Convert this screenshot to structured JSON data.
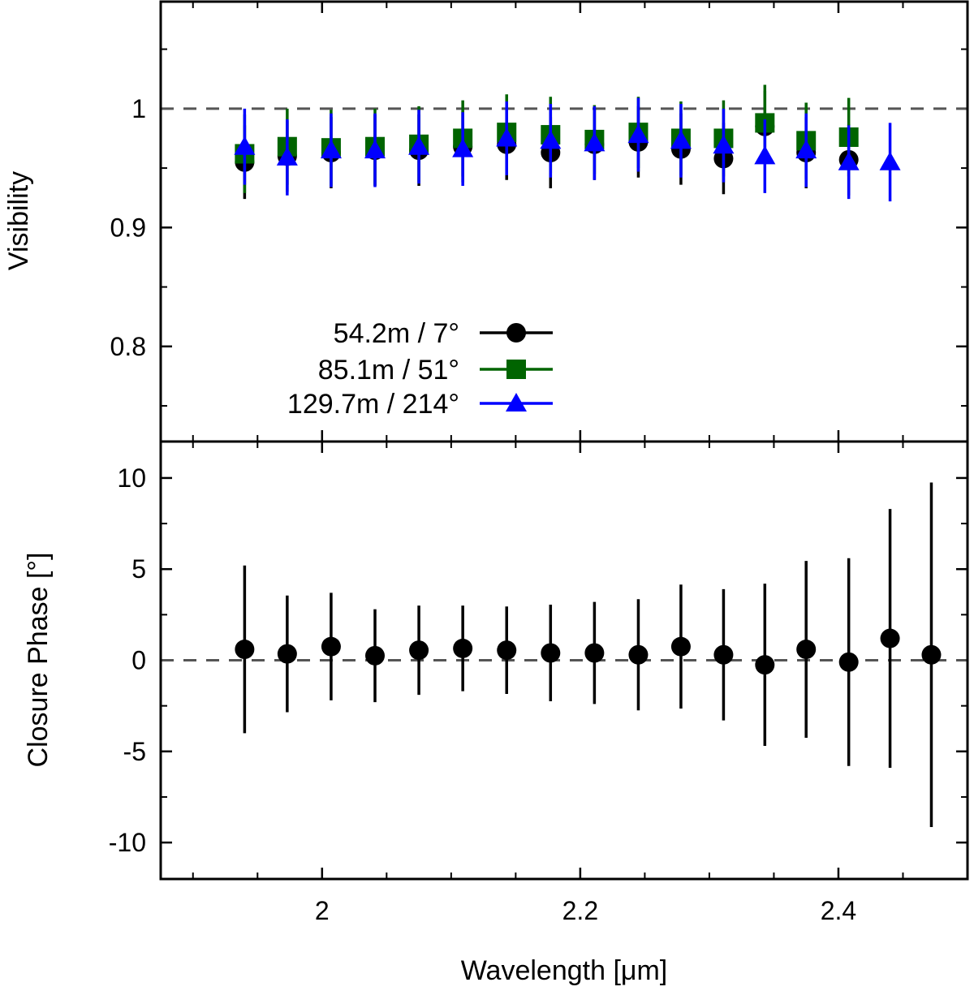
{
  "chart_data": [
    {
      "type": "scatter",
      "panel": "top",
      "ylabel": "Visibility",
      "xlim": [
        1.875,
        2.5
      ],
      "ylim": [
        0.72,
        1.09
      ],
      "yticks": [
        0.8,
        0.9,
        1.0
      ],
      "ytick_labels": [
        "0.8",
        "0.9",
        "1"
      ],
      "reference_line": 1.0,
      "legend": {
        "placement": "lower-left"
      },
      "series": [
        {
          "name": "54.2m / 7°",
          "color": "#000000",
          "marker": "circle",
          "x": [
            1.94,
            1.973,
            2.007,
            2.041,
            2.075,
            2.109,
            2.143,
            2.177,
            2.211,
            2.245,
            2.278,
            2.311,
            2.343,
            2.375,
            2.408
          ],
          "y": [
            0.955,
            0.96,
            0.963,
            0.965,
            0.965,
            0.968,
            0.97,
            0.963,
            0.97,
            0.972,
            0.966,
            0.958,
            0.985,
            0.963,
            0.957
          ],
          "err": [
            0.031,
            0.03,
            0.03,
            0.03,
            0.03,
            0.03,
            0.03,
            0.03,
            0.03,
            0.03,
            0.03,
            0.03,
            0.03,
            0.03,
            0.03
          ]
        },
        {
          "name": "85.1m / 51°",
          "color": "#006400",
          "marker": "square",
          "x": [
            1.94,
            1.973,
            2.007,
            2.041,
            2.075,
            2.109,
            2.143,
            2.177,
            2.211,
            2.245,
            2.278,
            2.311,
            2.343,
            2.375,
            2.408
          ],
          "y": [
            0.962,
            0.968,
            0.967,
            0.968,
            0.97,
            0.975,
            0.98,
            0.978,
            0.974,
            0.98,
            0.975,
            0.975,
            0.988,
            0.973,
            0.976
          ],
          "err": [
            0.033,
            0.032,
            0.032,
            0.032,
            0.032,
            0.032,
            0.032,
            0.032,
            0.029,
            0.03,
            0.031,
            0.032,
            0.032,
            0.032,
            0.033
          ]
        },
        {
          "name": "129.7m / 214°",
          "color": "#0000ff",
          "marker": "triangle",
          "x": [
            1.94,
            1.973,
            2.007,
            2.041,
            2.075,
            2.109,
            2.143,
            2.177,
            2.211,
            2.245,
            2.278,
            2.311,
            2.343,
            2.375,
            2.408,
            2.44
          ],
          "y": [
            0.968,
            0.959,
            0.965,
            0.965,
            0.968,
            0.966,
            0.975,
            0.973,
            0.971,
            0.978,
            0.973,
            0.969,
            0.96,
            0.965,
            0.955,
            0.955
          ],
          "err": [
            0.032,
            0.032,
            0.031,
            0.031,
            0.031,
            0.031,
            0.031,
            0.031,
            0.031,
            0.031,
            0.031,
            0.031,
            0.031,
            0.031,
            0.031,
            0.033
          ]
        }
      ]
    },
    {
      "type": "scatter",
      "panel": "bottom",
      "xlabel": "Wavelength [μm]",
      "ylabel": "Closure Phase [°]",
      "xlim": [
        1.875,
        2.5
      ],
      "ylim": [
        -12.0,
        12.0
      ],
      "xticks": [
        2.0,
        2.2,
        2.4
      ],
      "xtick_labels": [
        "2",
        "2.2",
        "2.4"
      ],
      "yticks": [
        -10,
        -5,
        0,
        5,
        10
      ],
      "ytick_labels": [
        "-10",
        "-5",
        "0",
        "5",
        "10"
      ],
      "reference_line": 0,
      "series": [
        {
          "color": "#000000",
          "marker": "circle",
          "x": [
            1.94,
            1.973,
            2.007,
            2.041,
            2.075,
            2.109,
            2.143,
            2.177,
            2.211,
            2.245,
            2.278,
            2.311,
            2.343,
            2.375,
            2.408,
            2.44,
            2.472
          ],
          "y": [
            0.6,
            0.35,
            0.75,
            0.25,
            0.55,
            0.65,
            0.55,
            0.4,
            0.4,
            0.3,
            0.75,
            0.3,
            -0.25,
            0.6,
            -0.1,
            1.2,
            0.3
          ],
          "err": [
            4.6,
            3.2,
            2.95,
            2.55,
            2.45,
            2.35,
            2.4,
            2.65,
            2.8,
            3.05,
            3.4,
            3.6,
            4.45,
            4.85,
            5.7,
            7.1,
            9.45
          ]
        }
      ]
    }
  ]
}
